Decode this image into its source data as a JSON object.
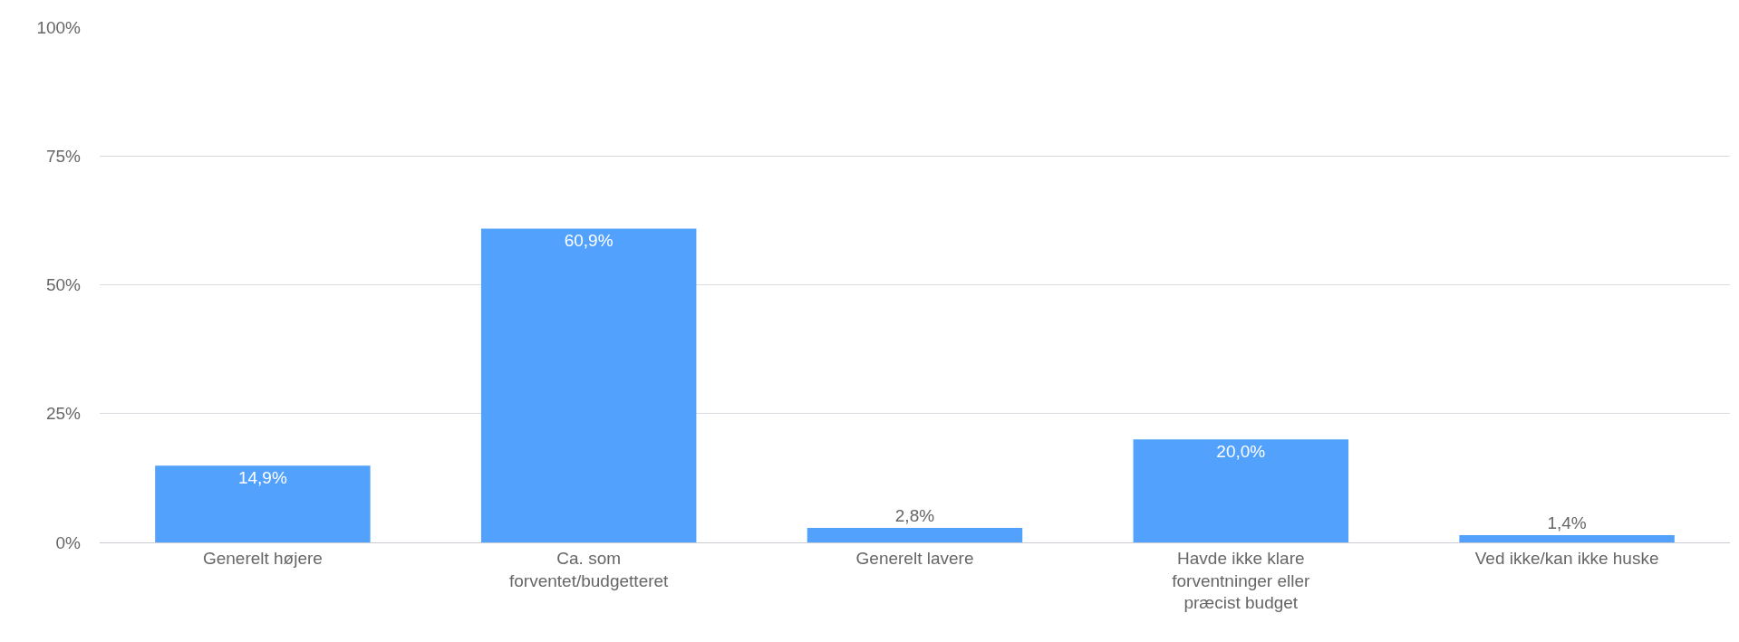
{
  "chart_data": {
    "type": "bar",
    "categories": [
      "Generelt højere",
      "Ca. som forventet/budgetteret",
      "Generelt lavere",
      "Havde ikke klare forventninger eller præcist budget",
      "Ved ikke/kan ikke huske"
    ],
    "values": [
      14.9,
      60.9,
      2.8,
      20.0,
      1.4
    ],
    "value_labels": [
      "14,9%",
      "60,9%",
      "2,8%",
      "20,0%",
      "1,4%"
    ],
    "color": "#52a2fd",
    "ylim": [
      0,
      100
    ],
    "yticks": [
      {
        "value": 0,
        "label": "0%"
      },
      {
        "value": 25,
        "label": "25%"
      },
      {
        "value": 50,
        "label": "50%"
      },
      {
        "value": 75,
        "label": "75%"
      },
      {
        "value": 100,
        "label": "100%"
      }
    ],
    "grid": "y"
  }
}
